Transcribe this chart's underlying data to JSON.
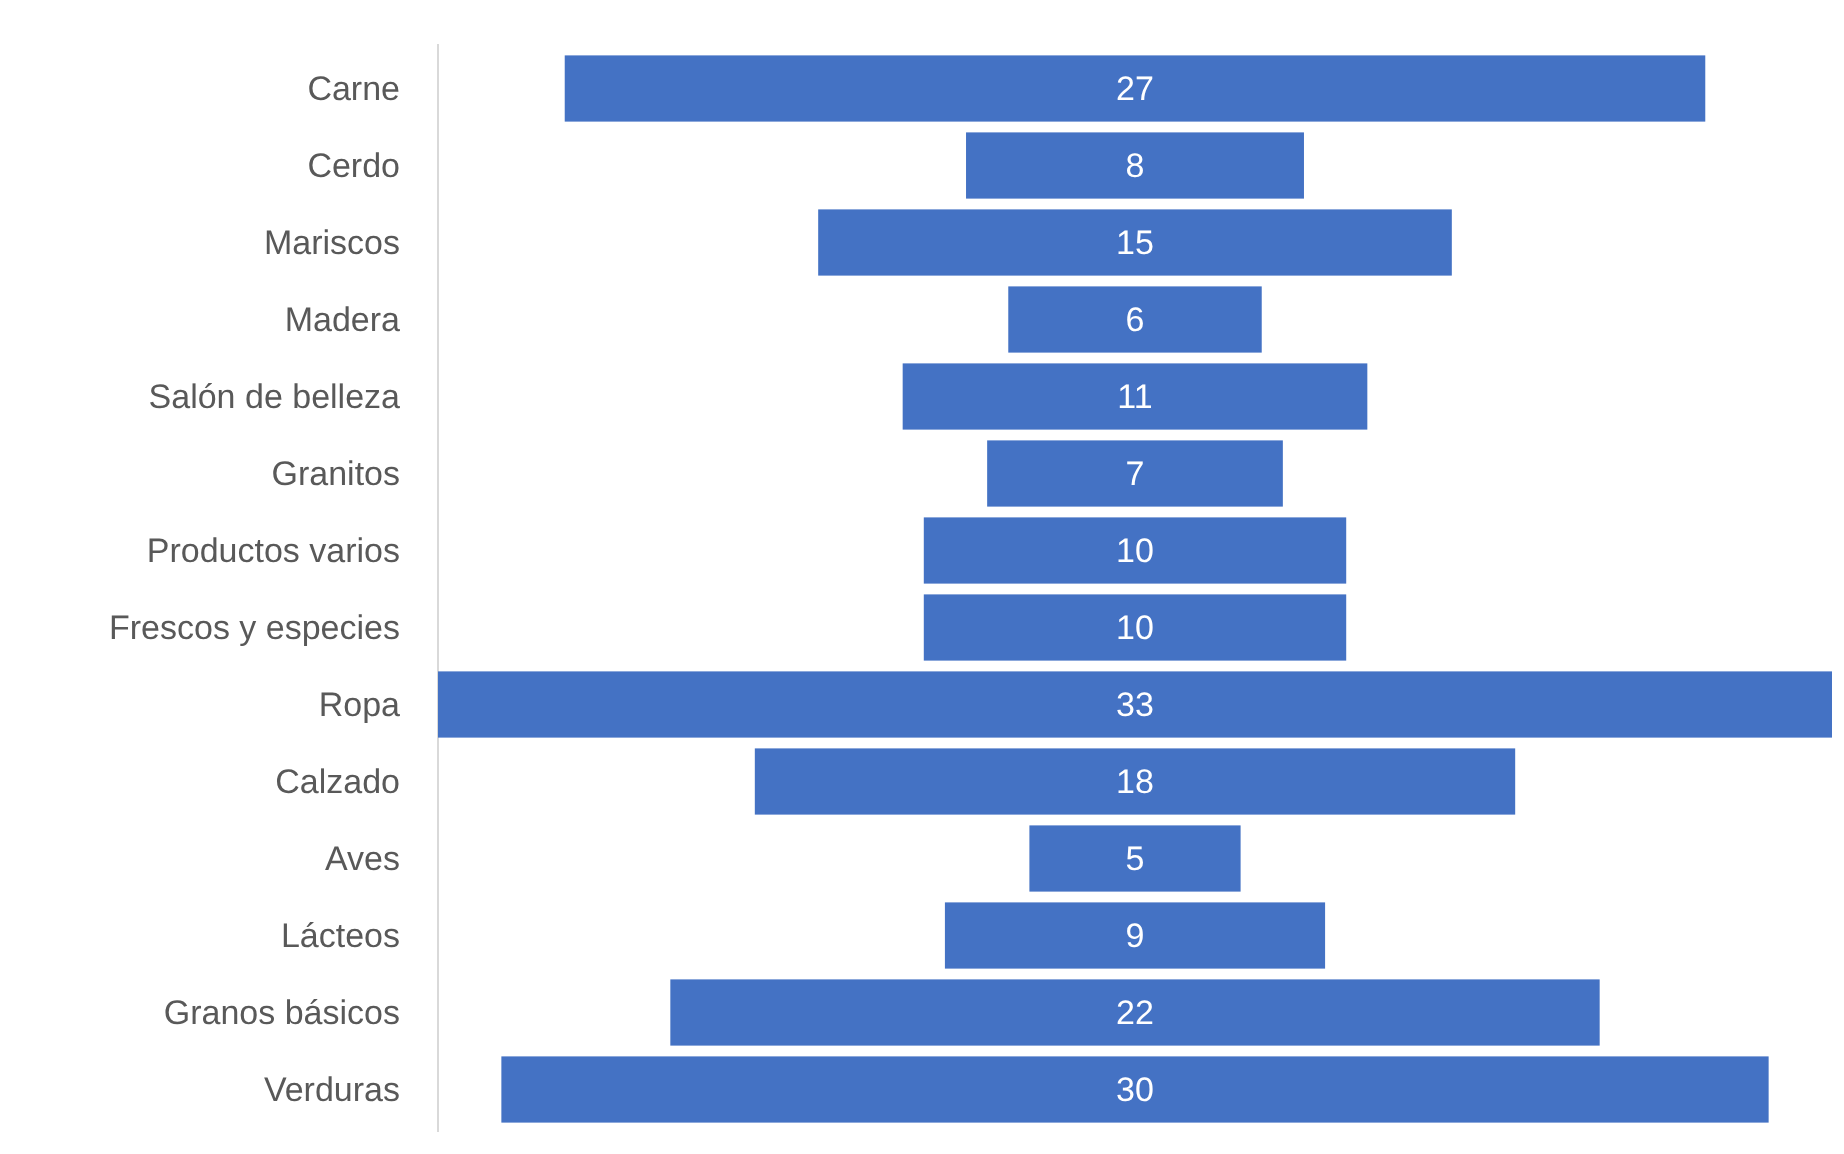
{
  "chart_data": {
    "type": "other",
    "categories": [
      "Carne",
      "Cerdo",
      "Mariscos",
      "Madera",
      "Salón de belleza",
      "Granitos",
      "Productos varios",
      "Frescos y especies",
      "Ropa",
      "Calzado",
      "Aves",
      "Lácteos",
      "Granos básicos",
      "Verduras"
    ],
    "values": [
      27,
      8,
      15,
      6,
      11,
      7,
      10,
      10,
      33,
      18,
      5,
      9,
      22,
      30
    ],
    "color": "#4472c4",
    "data_labels": true
  }
}
